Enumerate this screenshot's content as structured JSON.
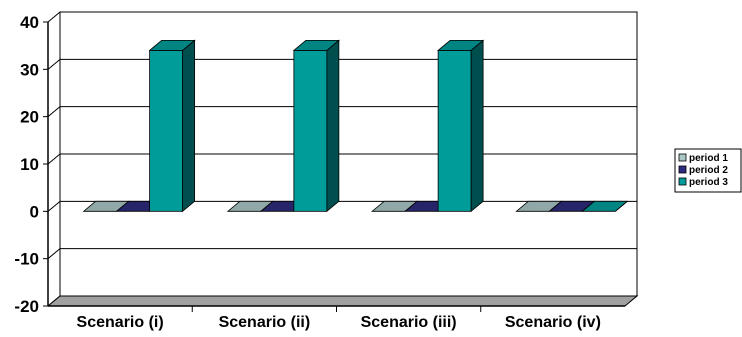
{
  "chart_data": {
    "type": "bar",
    "categories": [
      "Scenario (i)",
      "Scenario (ii)",
      "Scenario (iii)",
      "Scenario (iv)"
    ],
    "series": [
      {
        "name": "period 1",
        "values": [
          0,
          0,
          0,
          0
        ],
        "color": "#a9c7c6"
      },
      {
        "name": "period 2",
        "values": [
          0,
          0,
          0,
          0
        ],
        "color": "#2d2b7d"
      },
      {
        "name": "period 3",
        "values": [
          34,
          34,
          34,
          0
        ],
        "color": "#009c9a"
      }
    ],
    "yticks": [
      "40",
      "30",
      "20",
      "10",
      "0",
      "-10",
      "-20"
    ],
    "ylim": [
      -20,
      40
    ],
    "grid": true,
    "legend_position": "right",
    "render_style": "3d-column"
  }
}
